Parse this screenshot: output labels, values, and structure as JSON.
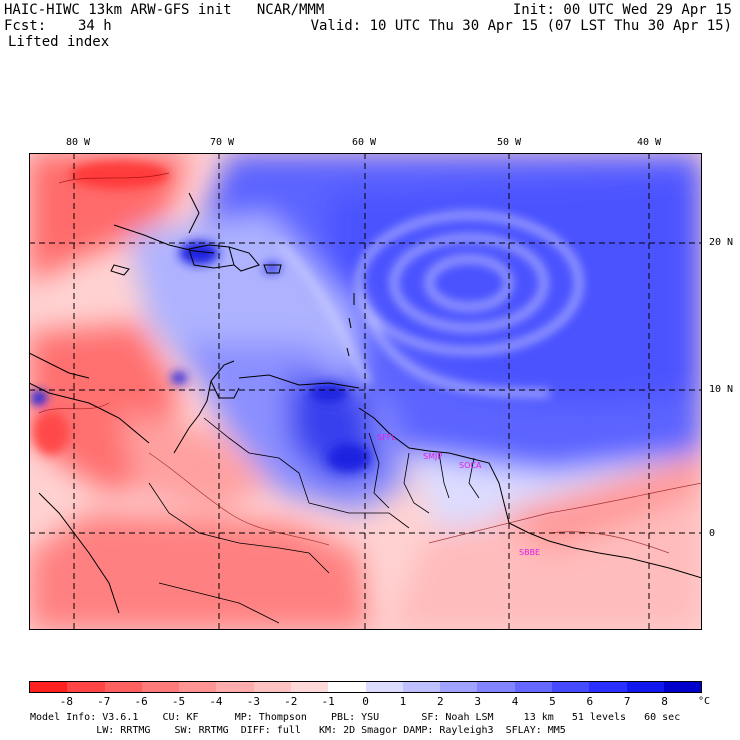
{
  "header": {
    "title_left": "HAIC-HIWC 13km ARW-GFS init   NCAR/MMM",
    "init": "Init: 00 UTC Wed 29 Apr 15",
    "fcst_label": "Fcst:",
    "fcst_value": "34 h",
    "valid": "Valid: 10 UTC Thu 30 Apr 15 (07 LST Thu 30 Apr 15)",
    "field": "Lifted index"
  },
  "axes": {
    "lon_labels": [
      "80 W",
      "70 W",
      "60 W",
      "50 W",
      "40 W"
    ],
    "lat_labels": [
      "20 N",
      "10 N",
      "0"
    ]
  },
  "stations": [
    "SFFL",
    "SMJP",
    "SOCA",
    "SBBE"
  ],
  "colorbar": {
    "labels": [
      "-8",
      "-7",
      "-6",
      "-5",
      "-4",
      "-3",
      "-2",
      "-1",
      "0",
      "1",
      "2",
      "3",
      "4",
      "5",
      "6",
      "7",
      "8"
    ],
    "unit": "°C",
    "colors": [
      "#ff2020",
      "#ff4545",
      "#ff6060",
      "#ff7a7a",
      "#ff9494",
      "#ffacac",
      "#ffc2c2",
      "#ffd9d9",
      "#ffffff",
      "#dcdcff",
      "#bfc0ff",
      "#a0a2ff",
      "#8285ff",
      "#6468ff",
      "#464bff",
      "#2a30ff",
      "#1018ee",
      "#0000cc"
    ]
  },
  "footer": {
    "line1": "Model Info: V3.6.1    CU: KF      MP: Thompson    PBL: YSU       SF: Noah LSM     13 km   51 levels   60 sec",
    "line2": "           LW: RRTMG    SW: RRTMG  DIFF: full   KM: 2D Smagor DAMP: Rayleigh3  SFLAY: MM5"
  }
}
